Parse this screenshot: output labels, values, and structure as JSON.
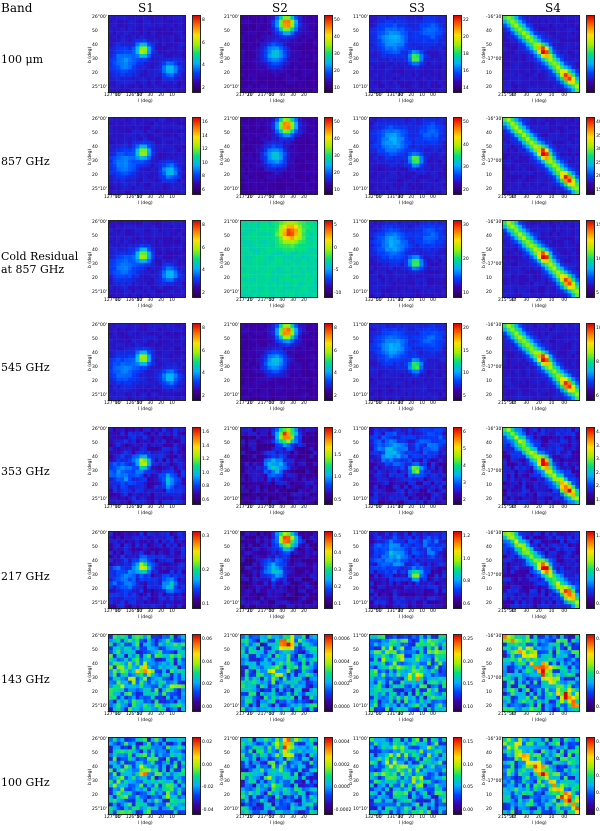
{
  "header": {
    "band": "Band",
    "columns": [
      "S1",
      "S2",
      "S3",
      "S4"
    ]
  },
  "bands": [
    {
      "label": "100 μm",
      "cbar": [
        [
          "8",
          "6",
          "4",
          "2"
        ],
        [
          "50",
          "40",
          "30",
          "20",
          "10"
        ],
        [
          "22",
          "20",
          "18",
          "16",
          "14"
        ],
        [
          "",
          "",
          "",
          "",
          ""
        ]
      ]
    },
    {
      "label": "857 GHz",
      "cbar": [
        [
          "16",
          "14",
          "12",
          "10",
          "8",
          "6"
        ],
        [
          "50",
          "40",
          "30",
          "20",
          "10"
        ],
        [
          "50",
          "40",
          "30",
          "20"
        ],
        [
          "40",
          "35",
          "30",
          "25",
          "20",
          "15"
        ]
      ]
    },
    {
      "label": "Cold Residual at 857 GHz",
      "cbar": [
        [
          "8",
          "6",
          "4",
          "2"
        ],
        [
          "5",
          "0",
          "-5",
          "-10"
        ],
        [
          "30",
          "20",
          "10"
        ],
        [
          "15",
          "10",
          "5"
        ]
      ]
    },
    {
      "label": "545 GHz",
      "cbar": [
        [
          "8",
          "6",
          "4",
          "2"
        ],
        [
          "8",
          "6",
          "4",
          "2"
        ],
        [
          "20",
          "15",
          "10",
          "5"
        ],
        [
          "10",
          "8",
          "6"
        ]
      ]
    },
    {
      "label": "353 GHz",
      "cbar": [
        [
          "1.6",
          "1.4",
          "1.2",
          "1.0",
          "0.8",
          "0.6"
        ],
        [
          "2.0",
          "1.5",
          "1.0",
          "0.5"
        ],
        [
          "6",
          "5",
          "4",
          "3",
          "2"
        ],
        [
          "4.0",
          "3.5",
          "3.0",
          "2.5",
          "2.0",
          "1.5"
        ]
      ]
    },
    {
      "label": "217 GHz",
      "cbar": [
        [
          "0.3",
          "0.2",
          "0.1"
        ],
        [
          "0.5",
          "0.4",
          "0.3",
          "0.2",
          "0.1"
        ],
        [
          "1.2",
          "1.0",
          "0.8",
          "0.6"
        ],
        [
          "1.0",
          "0.8",
          "0.6"
        ]
      ]
    },
    {
      "label": "143 GHz",
      "cbar": [
        [
          "0.06",
          "0.04",
          "0.02",
          "0.00"
        ],
        [
          "0.0006",
          "0.0004",
          "0.0002",
          "0.0000"
        ],
        [
          "0.25",
          "0.20",
          "0.15",
          "0.10"
        ],
        [
          "0.20",
          "0.15",
          "0.10"
        ]
      ]
    },
    {
      "label": "100 GHz",
      "cbar": [
        [
          "0.02",
          "0.00",
          "-0.02",
          "-0.04"
        ],
        [
          "0.0004",
          "0.0002",
          "0.0000",
          "-0.0002"
        ],
        [
          "0.15",
          "0.10",
          "0.05",
          "0.00"
        ],
        [
          "0.10",
          "0.08",
          "0.06",
          "0.04",
          "0.02"
        ]
      ]
    }
  ],
  "axes": {
    "xlabel": "l (deg)",
    "ylabel": "b (deg)",
    "xticks": [
      [
        "127°10'",
        "00",
        "126°50'",
        "40",
        "30",
        "20",
        "10"
      ],
      [
        "217°20'",
        "10",
        "217°00'",
        "50",
        "40",
        "30",
        "20"
      ],
      [
        "132°00'",
        "50",
        "131°40'",
        "30",
        "20",
        "10",
        "00"
      ],
      [
        "215°50'",
        "40",
        "30",
        "20",
        "10",
        "00"
      ]
    ],
    "yticks": [
      [
        "26°00'",
        "50",
        "40",
        "30",
        "20",
        "25°10'"
      ],
      [
        "21°00'",
        "50",
        "40",
        "30",
        "20",
        "20°10'"
      ],
      [
        "11°00'",
        "50",
        "40",
        "30",
        "20",
        "10°10'"
      ],
      [
        "-16°30'",
        "40",
        "50",
        "-17°00'",
        "10",
        "20"
      ]
    ]
  },
  "colors": {
    "low": "#2a0050",
    "mid": "#00c0ff",
    "high": "#e00000"
  }
}
